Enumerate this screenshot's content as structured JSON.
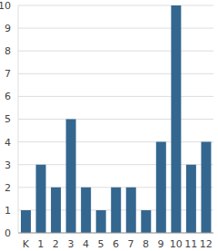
{
  "chart_data": {
    "type": "bar",
    "categories": [
      "K",
      "1",
      "2",
      "3",
      "4",
      "5",
      "6",
      "7",
      "8",
      "9",
      "10",
      "11",
      "12"
    ],
    "values": [
      1,
      3,
      2,
      5,
      2,
      1,
      2,
      2,
      1,
      4,
      10,
      3,
      4
    ],
    "color": "#34678f",
    "ylim": [
      0,
      10
    ],
    "yticks": [
      0,
      1,
      2,
      3,
      4,
      5,
      6,
      7,
      8,
      9,
      10
    ],
    "grid": true
  }
}
